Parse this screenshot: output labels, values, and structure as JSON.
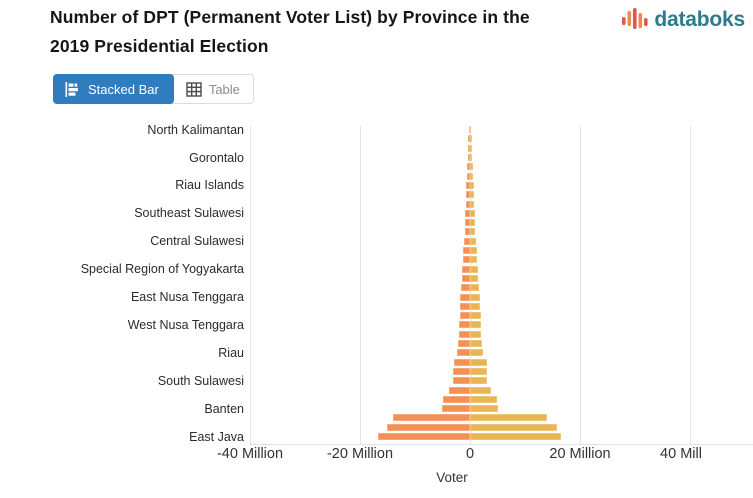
{
  "header": {
    "title_line1": "Number of DPT (Permanent Voter List) by Province in the",
    "title_line2": "2019 Presidential Election",
    "logo_text": "databoks"
  },
  "toolbar": {
    "stacked_bar_label": "Stacked Bar",
    "table_label": "Table"
  },
  "colors": {
    "accent_blue": "#2F7CBF",
    "bar_left_orange": "#F59053",
    "bar_right_gold": "#E9B452",
    "logo_teal": "#2E7B8C",
    "logo_red": "#E2574C",
    "logo_orange": "#F08A4C",
    "gridline_gray": "#E3E3E3"
  },
  "chart_data": {
    "type": "bar",
    "variant": "diverging-stacked-horizontal",
    "title": "Number of DPT (Permanent Voter List) by Province in the 2019 Presidential Election",
    "xlabel": "Voter",
    "unit": "million voters",
    "xlim_million": [
      -40,
      51.5
    ],
    "grid": true,
    "legend": "none visible",
    "x_ticks": [
      {
        "value_million": -40,
        "label": "-40 Million"
      },
      {
        "value_million": -20,
        "label": "-20 Million"
      },
      {
        "value_million": 0,
        "label": "0"
      },
      {
        "value_million": 20,
        "label": "20 Million"
      },
      {
        "value_million": 40,
        "label": "40 Mill"
      }
    ],
    "y_axis_labels": [
      "North Kalimantan",
      "Gorontalo",
      "Riau Islands",
      "Southeast Sulawesi",
      "Central Sulawesi",
      "Special Region of Yogyakarta",
      "East Nusa Tenggara",
      "West Nusa Tenggara",
      "Riau",
      "South Sulawesi",
      "Banten",
      "East Java"
    ],
    "label_every_n_bars": 3,
    "series": [
      {
        "name": "left segment (orange)",
        "color": "#F59053"
      },
      {
        "name": "right segment (gold)",
        "color": "#E9B452"
      }
    ],
    "bars": [
      {
        "label": "North Kalimantan",
        "left_million": 0.22,
        "right_million": 0.22
      },
      {
        "label": "",
        "left_million": 0.37,
        "right_million": 0.37
      },
      {
        "label": "",
        "left_million": 0.4,
        "right_million": 0.4
      },
      {
        "label": "Gorontalo",
        "left_million": 0.42,
        "right_million": 0.42
      },
      {
        "label": "",
        "left_million": 0.47,
        "right_million": 0.48
      },
      {
        "label": "",
        "left_million": 0.49,
        "right_million": 0.49
      },
      {
        "label": "Riau Islands",
        "left_million": 0.64,
        "right_million": 0.65
      },
      {
        "label": "",
        "left_million": 0.67,
        "right_million": 0.68
      },
      {
        "label": "",
        "left_million": 0.71,
        "right_million": 0.71
      },
      {
        "label": "Southeast Sulawesi",
        "left_million": 0.88,
        "right_million": 0.88
      },
      {
        "label": "",
        "left_million": 0.91,
        "right_million": 0.91
      },
      {
        "label": "",
        "left_million": 0.95,
        "right_million": 0.96
      },
      {
        "label": "Central Sulawesi",
        "left_million": 1.01,
        "right_million": 1.02
      },
      {
        "label": "",
        "left_million": 1.22,
        "right_million": 1.23
      },
      {
        "label": "",
        "left_million": 1.29,
        "right_million": 1.3
      },
      {
        "label": "Special Region of Yogyakarta",
        "left_million": 1.38,
        "right_million": 1.4
      },
      {
        "label": "",
        "left_million": 1.48,
        "right_million": 1.49
      },
      {
        "label": "",
        "left_million": 1.68,
        "right_million": 1.7
      },
      {
        "label": "East Nusa Tenggara",
        "left_million": 1.76,
        "right_million": 1.77
      },
      {
        "label": "",
        "left_million": 1.82,
        "right_million": 1.83
      },
      {
        "label": "",
        "left_million": 1.9,
        "right_million": 1.92
      },
      {
        "label": "West Nusa Tenggara",
        "left_million": 1.99,
        "right_million": 2.0
      },
      {
        "label": "",
        "left_million": 2.06,
        "right_million": 2.07
      },
      {
        "label": "",
        "left_million": 2.22,
        "right_million": 2.24
      },
      {
        "label": "Riau",
        "left_million": 2.42,
        "right_million": 2.44
      },
      {
        "label": "",
        "left_million": 3.0,
        "right_million": 3.02
      },
      {
        "label": "",
        "left_million": 3.06,
        "right_million": 3.07
      },
      {
        "label": "South Sulawesi",
        "left_million": 3.12,
        "right_million": 3.16
      },
      {
        "label": "",
        "left_million": 3.87,
        "right_million": 3.89
      },
      {
        "label": "",
        "left_million": 4.85,
        "right_million": 4.95
      },
      {
        "label": "Banten",
        "left_million": 5.03,
        "right_million": 5.07
      },
      {
        "label": "",
        "left_million": 13.95,
        "right_million": 13.95
      },
      {
        "label": "",
        "left_million": 15.1,
        "right_million": 15.8
      },
      {
        "label": "East Java",
        "left_million": 16.75,
        "right_million": 16.55
      }
    ]
  }
}
